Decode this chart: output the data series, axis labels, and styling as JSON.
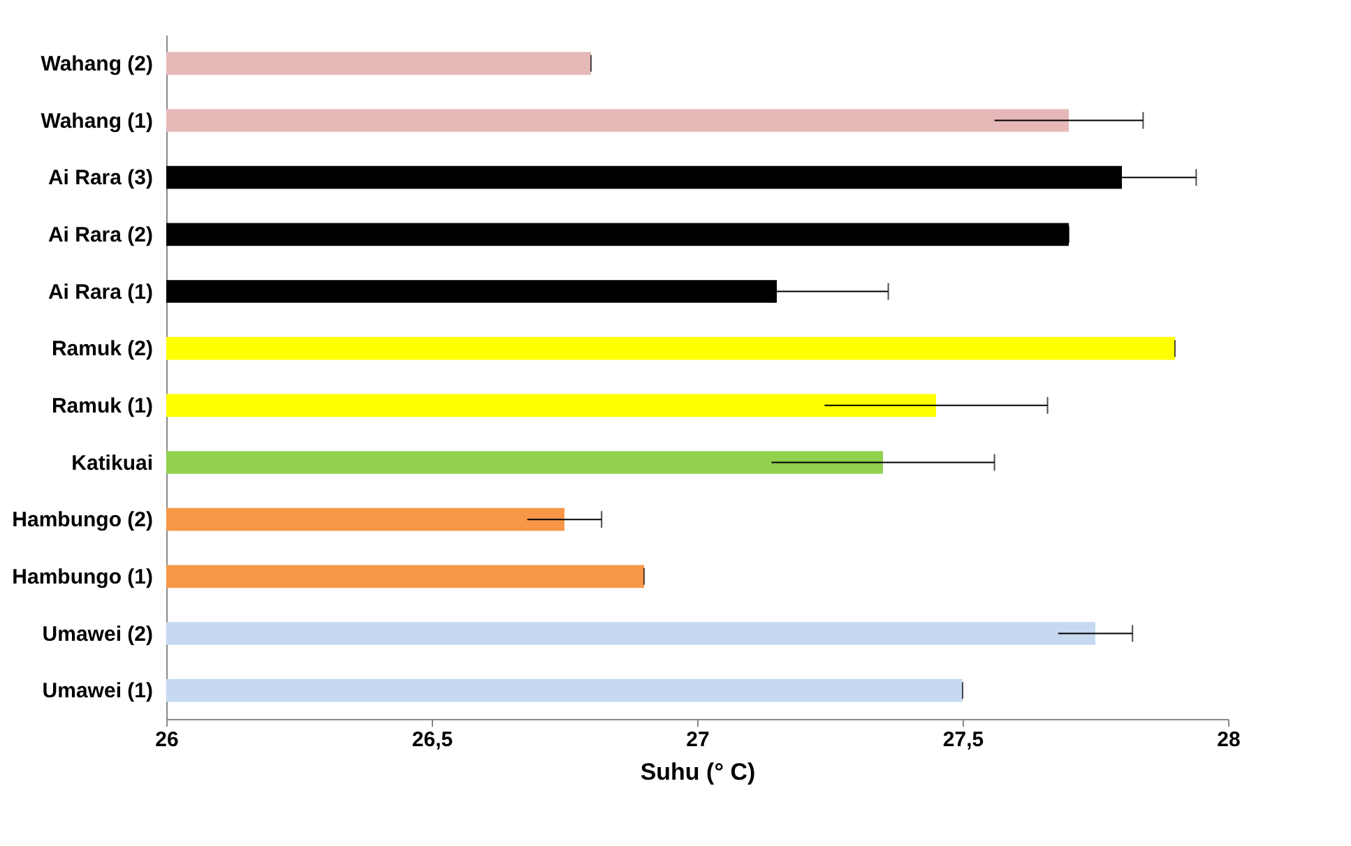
{
  "chart_data": {
    "type": "bar",
    "orientation": "horizontal",
    "xlabel": "Suhu (° C)",
    "categories": [
      "Wahang (2)",
      "Wahang (1)",
      "Ai Rara (3)",
      "Ai Rara (2)",
      "Ai Rara (1)",
      "Ramuk (2)",
      "Ramuk (1)",
      "Katikuai",
      "Hambungo (2)",
      "Hambungo (1)",
      "Umawei (2)",
      "Umawei (1)"
    ],
    "values": [
      26.8,
      27.7,
      27.8,
      27.7,
      27.15,
      27.9,
      27.45,
      27.35,
      26.75,
      26.9,
      27.75,
      27.5
    ],
    "errors": [
      0,
      0.14,
      0.14,
      0,
      0.21,
      0,
      0.21,
      0.21,
      0.07,
      0,
      0.07,
      0
    ],
    "colors": [
      "#e6b9b8",
      "#e6b9b8",
      "#000000",
      "#000000",
      "#000000",
      "#ffff00",
      "#ffff00",
      "#92d050",
      "#f79646",
      "#f79646",
      "#c6d9f1",
      "#c6d9f1"
    ],
    "xlim": [
      26,
      28
    ],
    "xticks": [
      26,
      {
        "value": 26.5,
        "label": "26,5"
      },
      27,
      {
        "value": 27.5,
        "label": "27,5"
      },
      28
    ],
    "grid": false
  }
}
